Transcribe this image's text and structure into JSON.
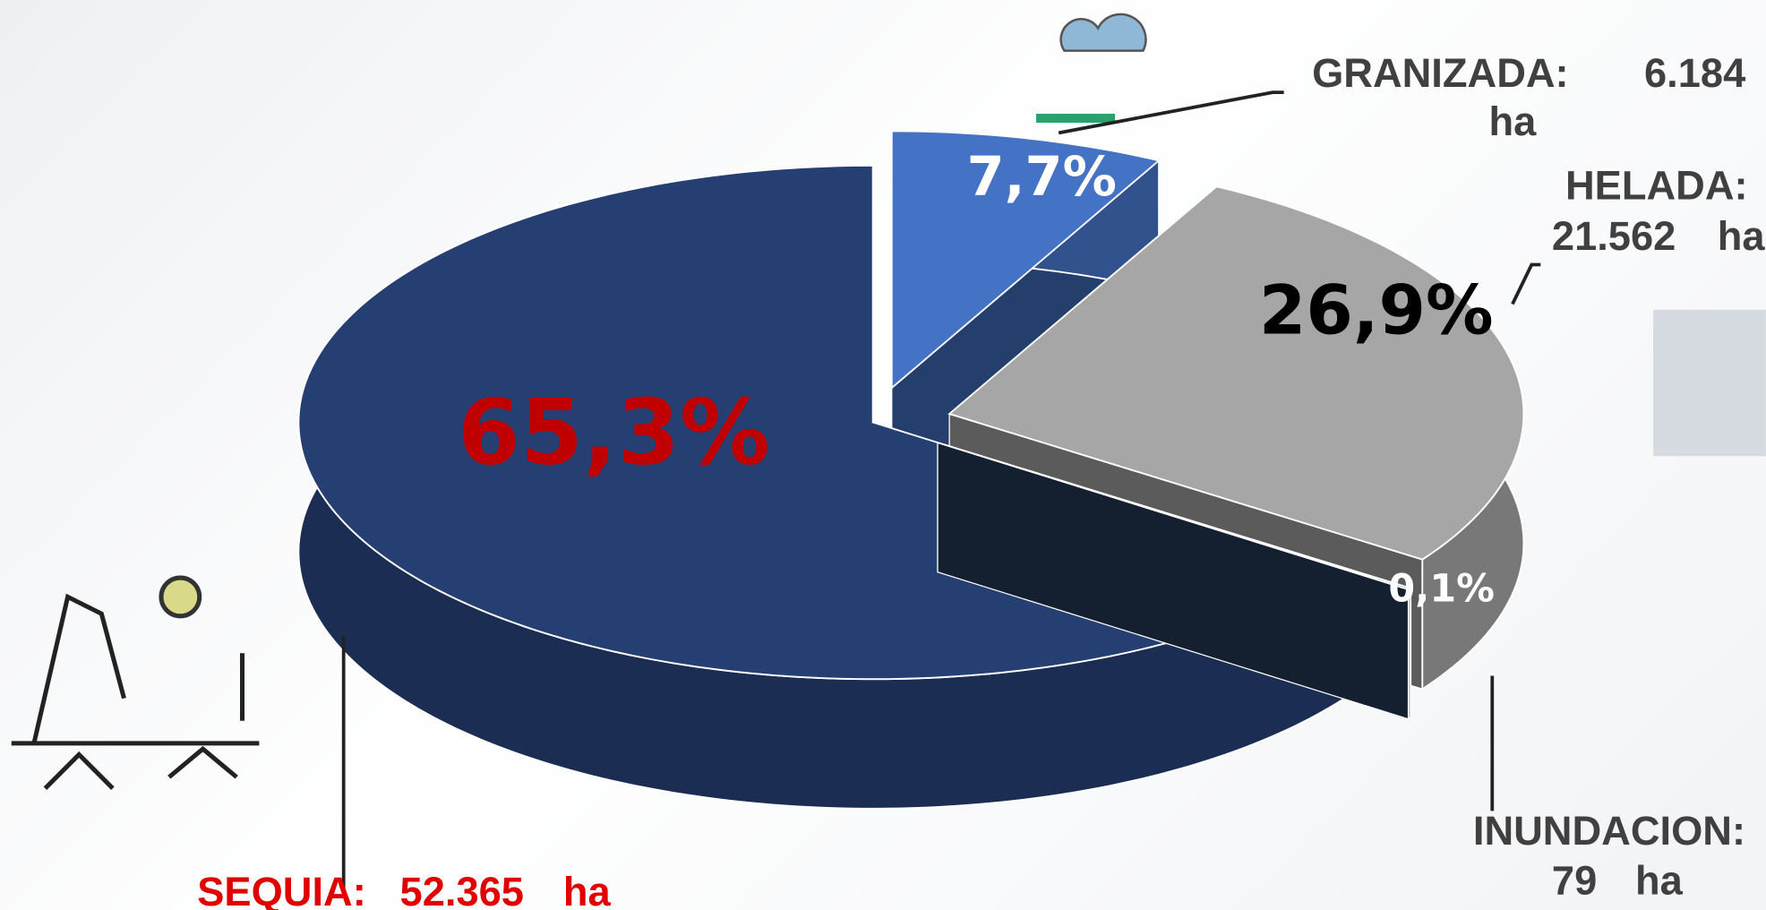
{
  "chart_data": {
    "type": "pie3d",
    "categories": [
      "GRANIZADA:",
      "HELADA:",
      "INUNDACION:",
      "SEQUIA:"
    ],
    "values": [
      7.7,
      26.9,
      0.1,
      65.3
    ],
    "value_labels": [
      "7,7%",
      "26,9%",
      "0,1%",
      "65,3%"
    ],
    "areas": [
      {
        "value": 6184,
        "label": "6.184"
      },
      {
        "value": 21562,
        "label": "21.562"
      },
      {
        "value": 79,
        "label": "79"
      },
      {
        "value": 52365,
        "label": "52.365"
      }
    ],
    "area_unit": "ha",
    "colors": [
      "#4472c4",
      "#a6a6a6",
      "#243b55",
      "#253f73"
    ],
    "value_label_colors": [
      "#ffffff",
      "#000000",
      "#ffffff",
      "#c00000"
    ],
    "category_label_colors": [
      "#404040",
      "#404040",
      "#404040",
      "#e00000"
    ],
    "exploded": [
      true,
      true,
      true,
      false
    ]
  }
}
